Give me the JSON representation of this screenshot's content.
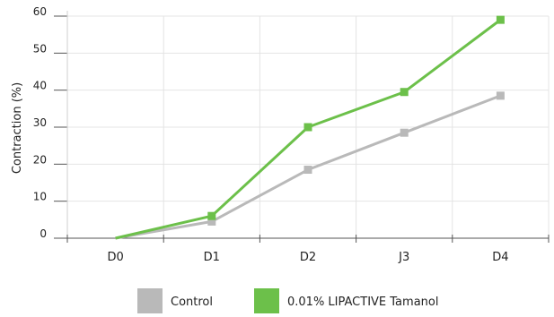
{
  "chart_data": {
    "type": "line",
    "title": "",
    "xlabel": "",
    "ylabel": "Contraction (%)",
    "categories": [
      "D0",
      "D1",
      "D2",
      "J3",
      "D4"
    ],
    "ylim": [
      0,
      60
    ],
    "yticks": [
      0,
      10,
      20,
      30,
      40,
      50,
      60
    ],
    "grid": true,
    "legend_position": "bottom",
    "series": [
      {
        "name": "Control",
        "values": [
          0,
          4.5,
          18.5,
          28.5,
          38.5
        ],
        "color": "#b9b9b9"
      },
      {
        "name": "0.01% LIPACTIVE Tamanol",
        "values": [
          0,
          6,
          30,
          39.5,
          59
        ],
        "color": "#6cc04a"
      }
    ]
  },
  "colors": {
    "grid": "#e4e4e4",
    "axis": "#555555"
  }
}
